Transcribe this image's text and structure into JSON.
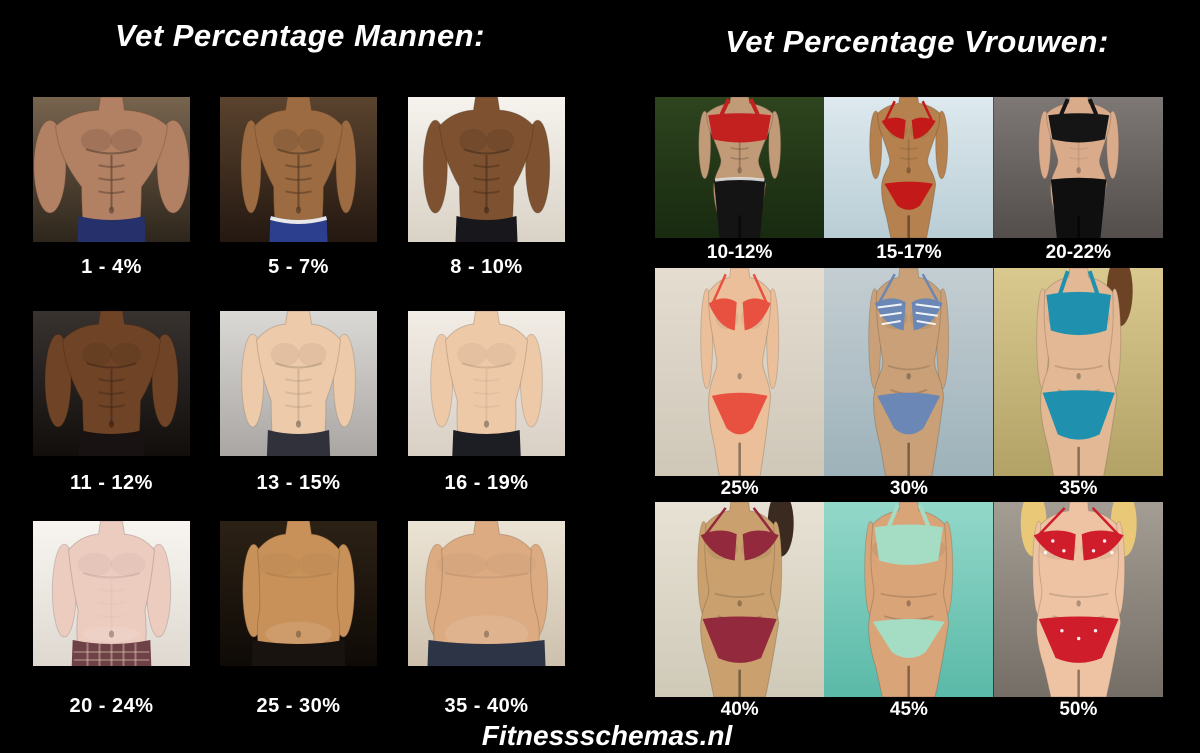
{
  "page": {
    "background": "#000000",
    "text_color": "#ffffff",
    "footer": "Fitnessschemas.nl"
  },
  "men": {
    "title": "Vet Percentage Mannen:",
    "cells": [
      {
        "label": "1 - 4%",
        "desc": "competition bodybuilder, extreme vascular muscle, navy posing briefs, gym background",
        "bg": [
          "#77644e",
          "#2e261c"
        ],
        "skin": "#b28063",
        "garment": "#26306b",
        "band": false,
        "fig": {
          "sh": 56,
          "wa": 30,
          "arm": 16,
          "def": 1,
          "belly": 0
        }
      },
      {
        "label": "5 - 7%",
        "desc": "shredded abs torso, dark brown backdrop, blue trunks with white waistband",
        "bg": [
          "#5a432e",
          "#241811"
        ],
        "skin": "#9c6b42",
        "garment": "#2c3f8f",
        "band": true,
        "fig": {
          "sh": 44,
          "wa": 25,
          "arm": 10,
          "def": 1,
          "belly": 0
        }
      },
      {
        "label": "8 - 10%",
        "desc": "defined athletic torso, oiled dark skin, white studio background, black jeans",
        "bg": [
          "#f6f3ee",
          "#d9d2c6"
        ],
        "skin": "#7e5230",
        "garment": "#17171c",
        "band": false,
        "fig": {
          "sh": 47,
          "wa": 27,
          "arm": 12,
          "def": 0.9,
          "belly": 0
        }
      },
      {
        "label": "11 - 12%",
        "desc": "muscular tanned torso, moody dark background",
        "bg": [
          "#38322f",
          "#110e0c"
        ],
        "skin": "#6f4326",
        "garment": "#181212",
        "band": false,
        "fig": {
          "sh": 49,
          "wa": 29,
          "arm": 13,
          "def": 0.75,
          "belly": 0
        }
      },
      {
        "label": "13 - 15%",
        "desc": "slim fit pale torso, plain grey wall",
        "bg": [
          "#dbd9d6",
          "#a9a6a3"
        ],
        "skin": "#edcaa9",
        "garment": "#31313c",
        "band": false,
        "fig": {
          "sh": 42,
          "wa": 27,
          "arm": 11,
          "def": 0.35,
          "belly": 0.05
        }
      },
      {
        "label": "16 - 19%",
        "desc": "soft lean torso, hand on hip, bright background, dark jeans",
        "bg": [
          "#f1ece5",
          "#d9d0c5"
        ],
        "skin": "#eec9a8",
        "garment": "#1d1d24",
        "band": false,
        "fig": {
          "sh": 41,
          "wa": 28,
          "arm": 11,
          "def": 0.18,
          "belly": 0.18
        }
      },
      {
        "label": "20 - 24%",
        "desc": "pale torso with slight belly, plaid shorts, white wall",
        "bg": [
          "#f8f5f1",
          "#ded8d0"
        ],
        "skin": "#edccc0",
        "garment": "#6d4145",
        "band": false,
        "plaid": true,
        "fig": {
          "sh": 43,
          "wa": 31,
          "arm": 12,
          "def": 0.08,
          "belly": 0.4
        }
      },
      {
        "label": "25 - 30%",
        "desc": "overweight tan torso, dark room background",
        "bg": [
          "#2c2115",
          "#0e0a06"
        ],
        "skin": "#c8915a",
        "garment": "#191310",
        "band": false,
        "fig": {
          "sh": 41,
          "wa": 35,
          "arm": 11,
          "def": 0,
          "belly": 0.65
        }
      },
      {
        "label": "35 - 40%",
        "desc": "obese hairy torso, large belly, navy trousers, bright wall",
        "bg": [
          "#ebe3d4",
          "#cdc1ad"
        ],
        "skin": "#dcab82",
        "garment": "#2c3446",
        "band": false,
        "fig": {
          "sh": 45,
          "wa": 43,
          "arm": 12,
          "def": 0,
          "belly": 1
        }
      }
    ]
  },
  "women": {
    "title": "Vet Percentage Vrouwen:",
    "cells": [
      {
        "label": "10-12%",
        "desc": "extremely ripped female, red crop top, black pants, hands on hips, grass background",
        "bg": [
          "#2e451f",
          "#182a10"
        ],
        "skin": "#c19a77",
        "top": "#c32020",
        "bottom": "#141414",
        "topStyle": "band",
        "bottomStyle": "pants",
        "waistband": true,
        "fig": {
          "sh": 33,
          "wa": 19,
          "hip": 26,
          "def": 0.9
        }
      },
      {
        "label": "15-17%",
        "desc": "fit bikini competitor, red bikini, pale sky background",
        "bg": [
          "#dde9ee",
          "#b9cdd5"
        ],
        "skin": "#b5814e",
        "top": "#c41919",
        "bottom": "#c41919",
        "topStyle": "bikini",
        "bottomStyle": "bikini",
        "fig": {
          "sh": 31,
          "wa": 19,
          "hip": 27,
          "def": 0.5
        }
      },
      {
        "label": "20-22%",
        "desc": "toned woman, black sports top and bottoms, grey studio",
        "bg": [
          "#7d7875",
          "#534e4c"
        ],
        "skin": "#d9ab8b",
        "top": "#151515",
        "bottom": "#0f0f0f",
        "topStyle": "band",
        "bottomStyle": "pants",
        "fig": {
          "sh": 32,
          "wa": 21,
          "hip": 28,
          "def": 0.3
        }
      },
      {
        "label": "25%",
        "desc": "slim woman, coral lace bikini, cream wall",
        "bg": [
          "#e4ddd0",
          "#cfc7b8"
        ],
        "skin": "#ebbf9a",
        "top": "#e85140",
        "bottom": "#e85140",
        "topStyle": "bikini",
        "bottomStyle": "bikini",
        "fig": {
          "sh": 31,
          "wa": 23,
          "hip": 31,
          "def": 0.1
        }
      },
      {
        "label": "30%",
        "desc": "curvy woman, blue zebra-print bikini, poolside",
        "bg": [
          "#c4ced2",
          "#9db2ba"
        ],
        "skin": "#c9a077",
        "top": "#6a87b5",
        "bottom": "#6a87b5",
        "topStyle": "bikini",
        "bottomStyle": "bikini",
        "pattern": "zebra",
        "fig": {
          "sh": 32,
          "wa": 26,
          "hip": 35,
          "def": 0
        }
      },
      {
        "label": "35%",
        "desc": "plus-size woman, teal bikini set, leafy backdrop",
        "bg": [
          "#d9c98f",
          "#b2a266"
        ],
        "skin": "#e3b894",
        "top": "#1f90ae",
        "bottom": "#1f90ae",
        "topStyle": "band",
        "bottomStyle": "band",
        "hairR": true,
        "hair": "#6d4326",
        "fig": {
          "sh": 34,
          "wa": 30,
          "hip": 38,
          "def": 0
        }
      },
      {
        "label": "40%",
        "desc": "plus-size woman walking on beach, maroon patterned bikini",
        "bg": [
          "#e8e2d5",
          "#cfc9b8"
        ],
        "skin": "#c9a06e",
        "top": "#93293c",
        "bottom": "#93293c",
        "topStyle": "bikini",
        "bottomStyle": "band",
        "hairR": true,
        "hair": "#3a2a20",
        "fig": {
          "sh": 34,
          "wa": 31,
          "hip": 39,
          "def": 0
        }
      },
      {
        "label": "45%",
        "desc": "heavy woman in turquoise water, mint bikini, hands clasped",
        "bg": [
          "#93d8c9",
          "#5ab9a8"
        ],
        "skin": "#d9a478",
        "top": "#a5dcc4",
        "bottom": "#a5dcc4",
        "topStyle": "band",
        "bottomStyle": "bikini",
        "fig": {
          "sh": 36,
          "wa": 35,
          "hip": 40,
          "def": 0
        }
      },
      {
        "label": "50%",
        "desc": "obese blonde woman, red polka-dot frill bikini, rocky grey background",
        "bg": [
          "#a39d94",
          "#746e66"
        ],
        "skin": "#eec3a3",
        "top": "#cf1d2c",
        "bottom": "#cf1d2c",
        "topStyle": "bikini",
        "bottomStyle": "band",
        "pattern": "dots",
        "hairL": true,
        "hairR": true,
        "hair": "#e9c878",
        "fig": {
          "sh": 38,
          "wa": 37,
          "hip": 42,
          "def": 0
        }
      }
    ]
  }
}
